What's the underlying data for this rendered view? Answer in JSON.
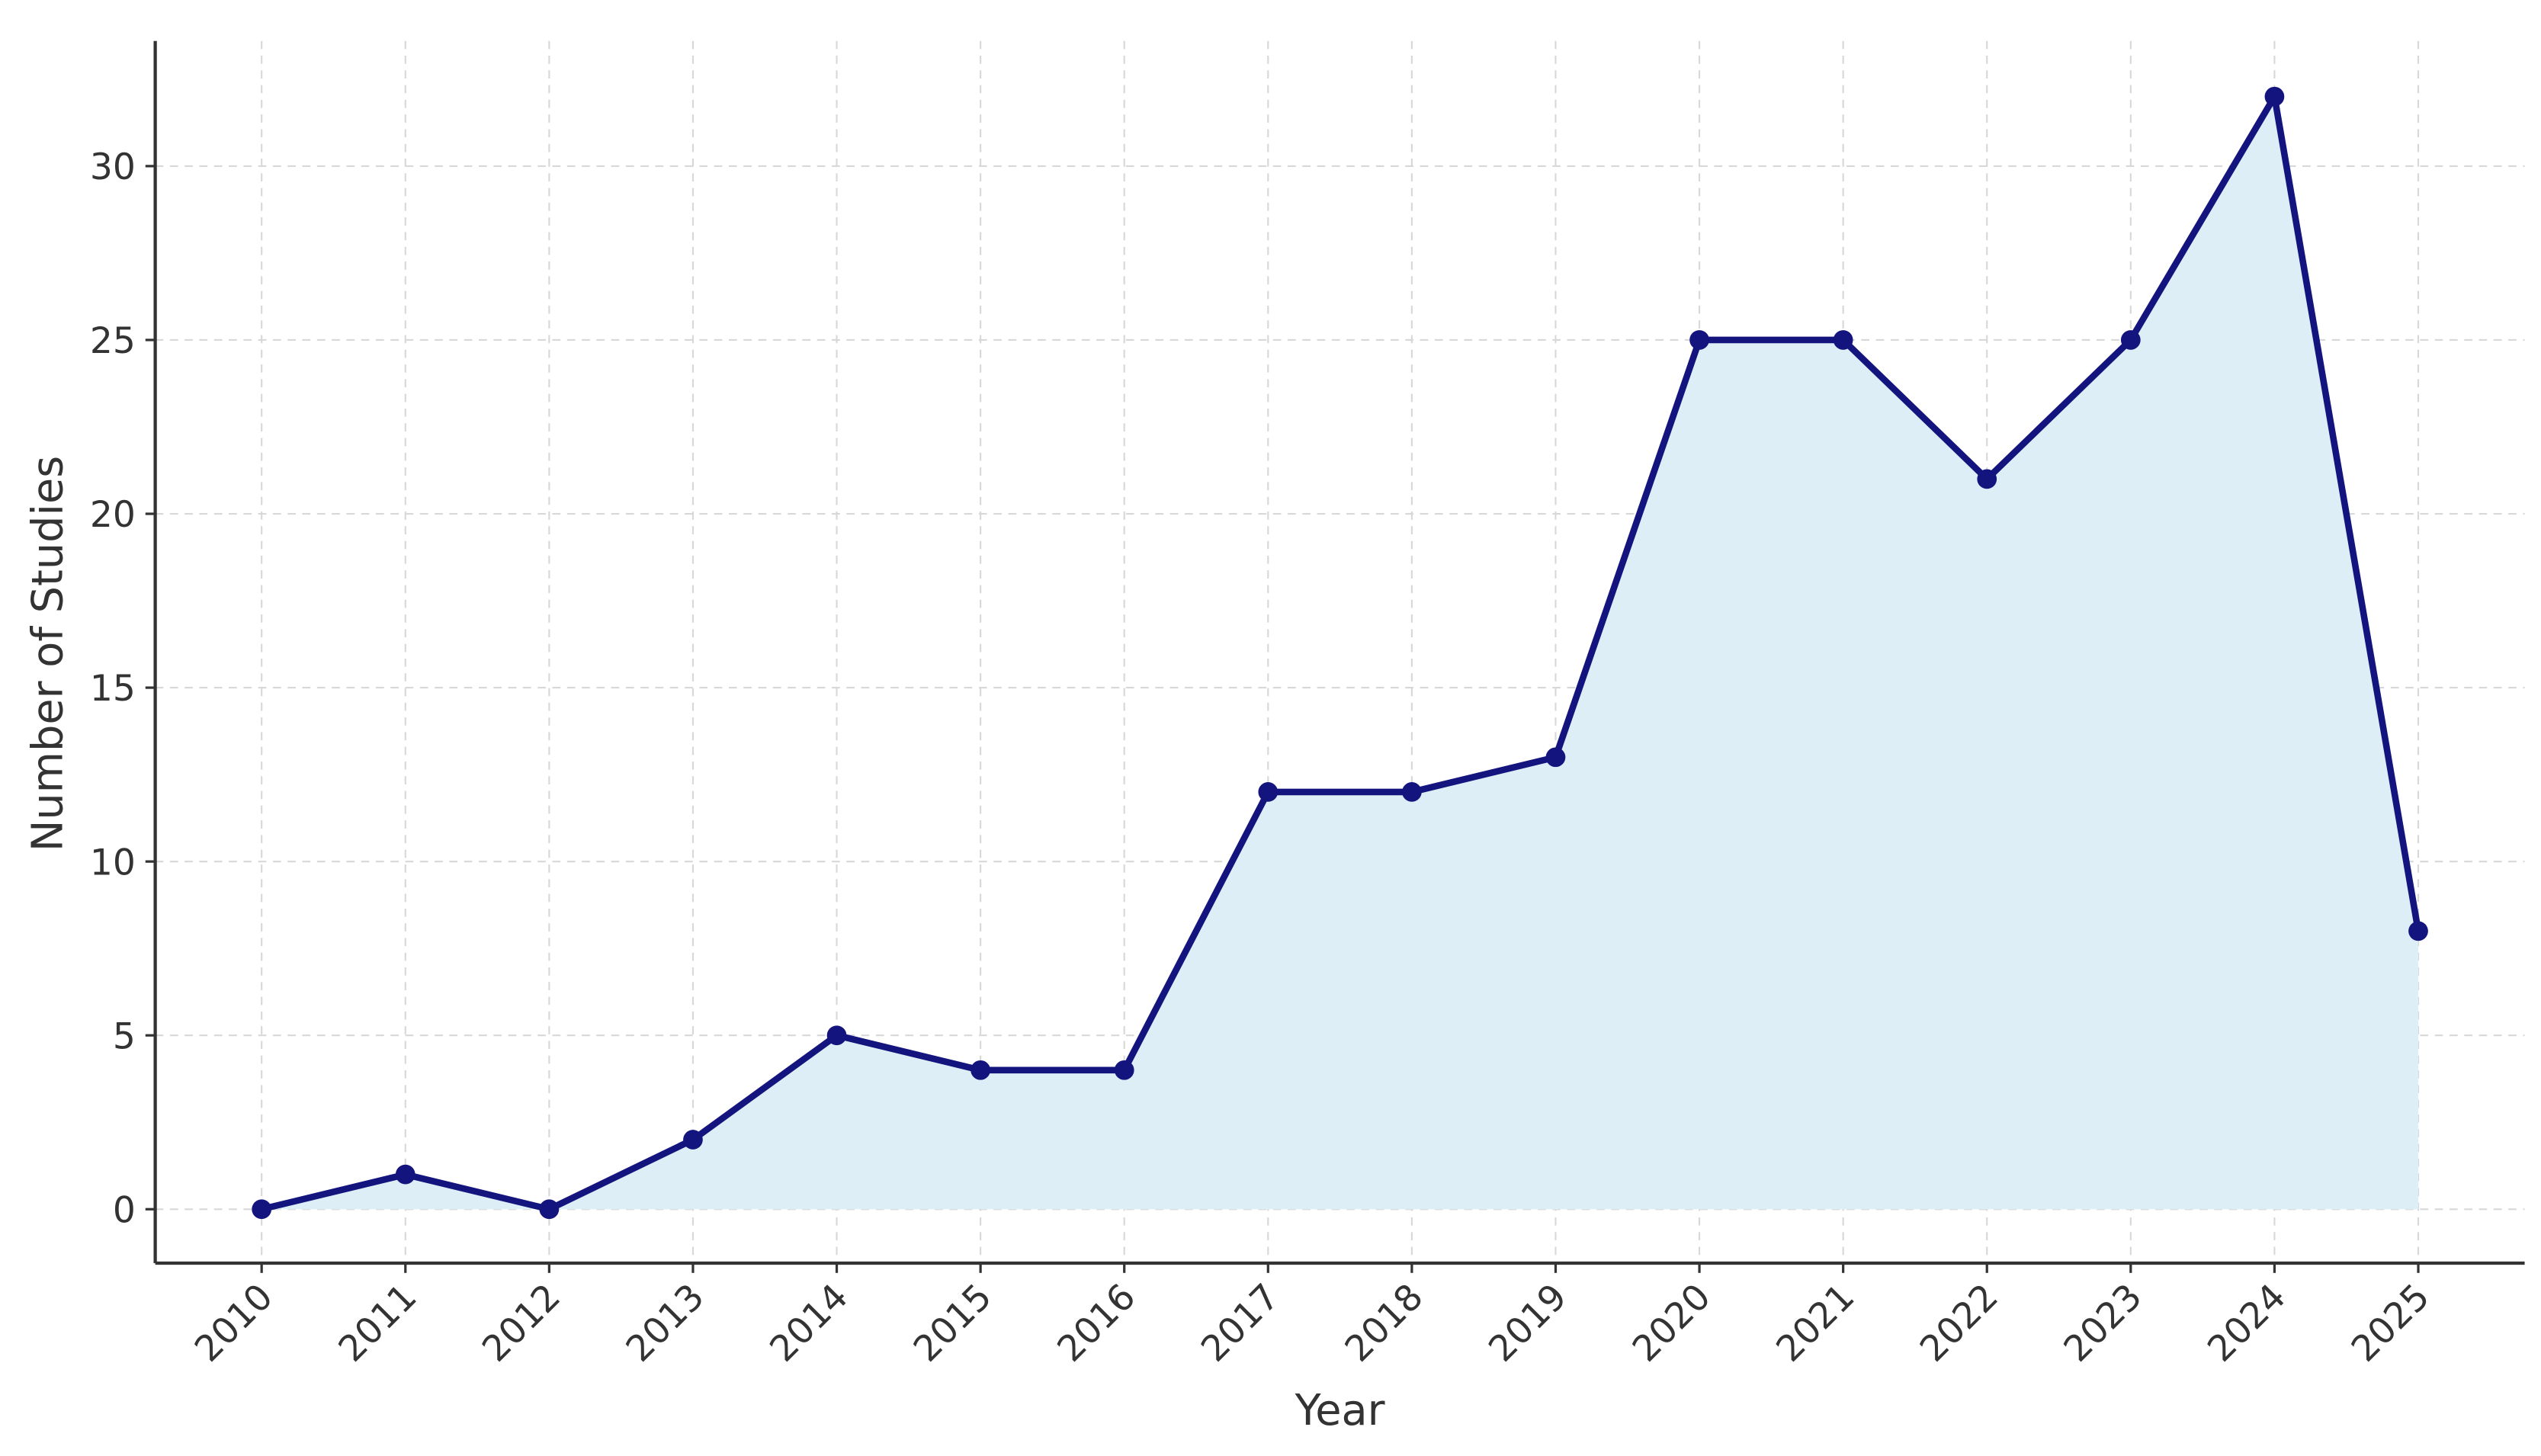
{
  "chart_data": {
    "type": "line",
    "x_label": "Year",
    "y_label": "Number of Studies",
    "x": [
      2010,
      2011,
      2012,
      2013,
      2014,
      2015,
      2016,
      2017,
      2018,
      2019,
      2020,
      2021,
      2022,
      2023,
      2024,
      2025
    ],
    "series": [
      {
        "color": "#14147f",
        "fill": "#ddeef7",
        "values": [
          0,
          1,
          0,
          2,
          5,
          4,
          4,
          12,
          12,
          13,
          25,
          25,
          21,
          25,
          32,
          8
        ]
      }
    ],
    "xlim": [
      2009.26,
      2025.74
    ],
    "xticks": [
      2010,
      2011,
      2012,
      2013,
      2014,
      2015,
      2016,
      2017,
      2018,
      2019,
      2020,
      2021,
      2022,
      2023,
      2024,
      2025
    ],
    "ylim": [
      -1.55,
      33.6
    ],
    "yticks": [
      0,
      5,
      10,
      15,
      20,
      25,
      30
    ],
    "grid": true
  }
}
